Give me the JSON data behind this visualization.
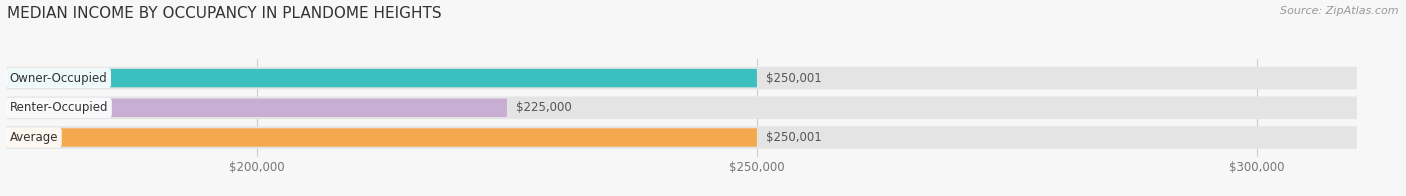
{
  "title": "MEDIAN INCOME BY OCCUPANCY IN PLANDOME HEIGHTS",
  "source": "Source: ZipAtlas.com",
  "categories": [
    "Owner-Occupied",
    "Renter-Occupied",
    "Average"
  ],
  "values": [
    250001,
    225000,
    250001
  ],
  "bar_colors": [
    "#3bbfbf",
    "#c9aed4",
    "#f5a94e"
  ],
  "bar_labels": [
    "$250,001",
    "$225,000",
    "$250,001"
  ],
  "xlim": [
    175000,
    310000
  ],
  "xticks": [
    200000,
    250000,
    300000
  ],
  "xtick_labels": [
    "$200,000",
    "$250,000",
    "$300,000"
  ],
  "bar_height": 0.62,
  "bg_color": "#f7f7f7",
  "bar_bg_color": "#e4e4e4",
  "title_fontsize": 11,
  "label_fontsize": 8.5,
  "value_fontsize": 8.5,
  "tick_fontsize": 8.5,
  "source_fontsize": 8
}
